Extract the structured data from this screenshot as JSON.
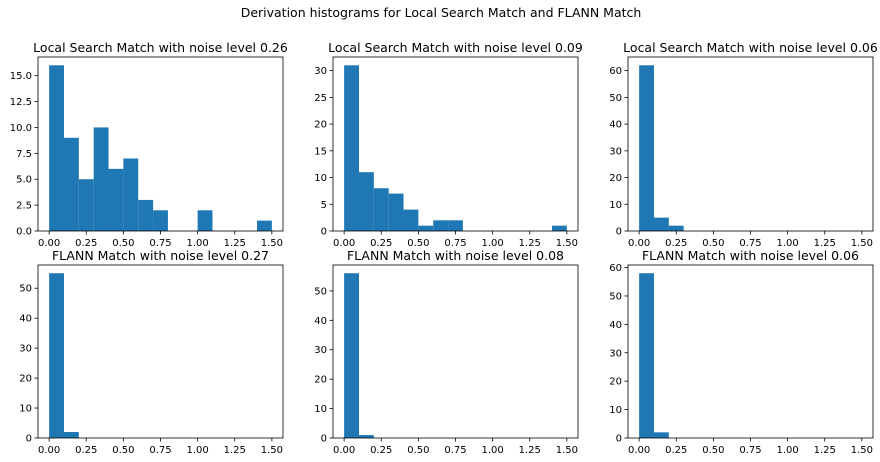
{
  "figure": {
    "suptitle": "Derivation histograms for Local Search Match and FLANN Match",
    "bar_color": "#1f77b4"
  },
  "chart_data": [
    {
      "type": "bar",
      "title": "Local Search Match with noise level 0.26",
      "bin_edges": [
        0.0,
        0.1,
        0.2,
        0.3,
        0.4,
        0.5,
        0.6,
        0.7,
        0.8,
        0.9,
        1.0,
        1.1,
        1.2,
        1.3,
        1.4,
        1.5
      ],
      "values": [
        16,
        9,
        5,
        10,
        6,
        7,
        3,
        2,
        0,
        0,
        2,
        0,
        0,
        0,
        1
      ],
      "xlim": [
        -0.075,
        1.575
      ],
      "ylim": [
        0,
        16.8
      ],
      "xticks": [
        "0.00",
        "0.25",
        "0.50",
        "0.75",
        "1.00",
        "1.25",
        "1.50"
      ],
      "xtick_values": [
        0,
        0.25,
        0.5,
        0.75,
        1.0,
        1.25,
        1.5
      ],
      "yticks": [
        "0.0",
        "2.5",
        "5.0",
        "7.5",
        "10.0",
        "12.5",
        "15.0"
      ],
      "ytick_values": [
        0,
        2.5,
        5,
        7.5,
        10,
        12.5,
        15
      ],
      "xlabel": "",
      "ylabel": ""
    },
    {
      "type": "bar",
      "title": "Local Search Match with noise level 0.09",
      "bin_edges": [
        0.0,
        0.1,
        0.2,
        0.3,
        0.4,
        0.5,
        0.6,
        0.7,
        0.8,
        0.9,
        1.0,
        1.1,
        1.2,
        1.3,
        1.4,
        1.5
      ],
      "values": [
        31,
        11,
        8,
        7,
        4,
        1,
        2,
        2,
        0,
        0,
        0,
        0,
        0,
        0,
        1
      ],
      "xlim": [
        -0.075,
        1.575
      ],
      "ylim": [
        0,
        32.55
      ],
      "xticks": [
        "0.00",
        "0.25",
        "0.50",
        "0.75",
        "1.00",
        "1.25",
        "1.50"
      ],
      "xtick_values": [
        0,
        0.25,
        0.5,
        0.75,
        1.0,
        1.25,
        1.5
      ],
      "yticks": [
        "0",
        "5",
        "10",
        "15",
        "20",
        "25",
        "30"
      ],
      "ytick_values": [
        0,
        5,
        10,
        15,
        20,
        25,
        30
      ],
      "xlabel": "",
      "ylabel": ""
    },
    {
      "type": "bar",
      "title": "Local Search Match with noise level 0.06",
      "bin_edges": [
        0.0,
        0.1,
        0.2,
        0.3,
        0.4,
        0.5,
        0.6,
        0.7,
        0.8,
        0.9,
        1.0,
        1.1,
        1.2,
        1.3,
        1.4,
        1.5
      ],
      "values": [
        62,
        5,
        2,
        0,
        0,
        0,
        0,
        0,
        0,
        0,
        0,
        0,
        0,
        0,
        0
      ],
      "xlim": [
        -0.075,
        1.575
      ],
      "ylim": [
        0,
        65.1
      ],
      "xticks": [
        "0.00",
        "0.25",
        "0.50",
        "0.75",
        "1.00",
        "1.25",
        "1.50"
      ],
      "xtick_values": [
        0,
        0.25,
        0.5,
        0.75,
        1.0,
        1.25,
        1.5
      ],
      "yticks": [
        "0",
        "10",
        "20",
        "30",
        "40",
        "50",
        "60"
      ],
      "ytick_values": [
        0,
        10,
        20,
        30,
        40,
        50,
        60
      ],
      "xlabel": "",
      "ylabel": ""
    },
    {
      "type": "bar",
      "title": "FLANN Match with noise level 0.27",
      "bin_edges": [
        0.0,
        0.1,
        0.2,
        0.3,
        0.4,
        0.5,
        0.6,
        0.7,
        0.8,
        0.9,
        1.0,
        1.1,
        1.2,
        1.3,
        1.4,
        1.5
      ],
      "values": [
        55,
        2,
        0,
        0,
        0,
        0,
        0,
        0,
        0,
        0,
        0,
        0,
        0,
        0,
        0
      ],
      "xlim": [
        -0.075,
        1.575
      ],
      "ylim": [
        0,
        57.75
      ],
      "xticks": [
        "0.00",
        "0.25",
        "0.50",
        "0.75",
        "1.00",
        "1.25",
        "1.50"
      ],
      "xtick_values": [
        0,
        0.25,
        0.5,
        0.75,
        1.0,
        1.25,
        1.5
      ],
      "yticks": [
        "0",
        "10",
        "20",
        "30",
        "40",
        "50"
      ],
      "ytick_values": [
        0,
        10,
        20,
        30,
        40,
        50
      ],
      "xlabel": "",
      "ylabel": ""
    },
    {
      "type": "bar",
      "title": "FLANN Match with noise level 0.08",
      "bin_edges": [
        0.0,
        0.1,
        0.2,
        0.3,
        0.4,
        0.5,
        0.6,
        0.7,
        0.8,
        0.9,
        1.0,
        1.1,
        1.2,
        1.3,
        1.4,
        1.5
      ],
      "values": [
        56,
        1,
        0,
        0,
        0,
        0,
        0,
        0,
        0,
        0,
        0,
        0,
        0,
        0,
        0
      ],
      "xlim": [
        -0.075,
        1.575
      ],
      "ylim": [
        0,
        58.8
      ],
      "xticks": [
        "0.00",
        "0.25",
        "0.50",
        "0.75",
        "1.00",
        "1.25",
        "1.50"
      ],
      "xtick_values": [
        0,
        0.25,
        0.5,
        0.75,
        1.0,
        1.25,
        1.5
      ],
      "yticks": [
        "0",
        "10",
        "20",
        "30",
        "40",
        "50"
      ],
      "ytick_values": [
        0,
        10,
        20,
        30,
        40,
        50
      ],
      "xlabel": "",
      "ylabel": ""
    },
    {
      "type": "bar",
      "title": "FLANN Match with noise level 0.06",
      "bin_edges": [
        0.0,
        0.1,
        0.2,
        0.3,
        0.4,
        0.5,
        0.6,
        0.7,
        0.8,
        0.9,
        1.0,
        1.1,
        1.2,
        1.3,
        1.4,
        1.5
      ],
      "values": [
        58,
        2,
        0,
        0,
        0,
        0,
        0,
        0,
        0,
        0,
        0,
        0,
        0,
        0,
        0
      ],
      "xlim": [
        -0.075,
        1.575
      ],
      "ylim": [
        0,
        60.9
      ],
      "xticks": [
        "0.00",
        "0.25",
        "0.50",
        "0.75",
        "1.00",
        "1.25",
        "1.50"
      ],
      "xtick_values": [
        0,
        0.25,
        0.5,
        0.75,
        1.0,
        1.25,
        1.5
      ],
      "yticks": [
        "0",
        "10",
        "20",
        "30",
        "40",
        "50",
        "60"
      ],
      "ytick_values": [
        0,
        10,
        20,
        30,
        40,
        50,
        60
      ],
      "xlabel": "",
      "ylabel": ""
    }
  ]
}
